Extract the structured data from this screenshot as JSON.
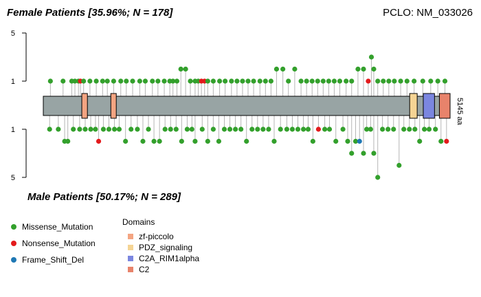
{
  "header": {
    "female_title": "Female Patients [35.96%; N = 178]",
    "male_title": "Male Patients [50.17%; N = 289]",
    "gene_title": "PCLO: NM_033026"
  },
  "legend": {
    "mutations": [
      {
        "label": "Missense_Mutation",
        "color": "#33A02C"
      },
      {
        "label": "Nonsense_Mutation",
        "color": "#E31A1C"
      },
      {
        "label": "Frame_Shift_Del",
        "color": "#1F78B4"
      }
    ],
    "domains_title": "Domains",
    "domains": [
      {
        "label": "zf-piccolo",
        "color": "#F4A582"
      },
      {
        "label": "PDZ_signaling",
        "color": "#F5D494"
      },
      {
        "label": "C2A_RIM1alpha",
        "color": "#7B86E0"
      },
      {
        "label": "C2",
        "color": "#E8836B"
      }
    ]
  },
  "chart_data": {
    "type": "lollipop",
    "protein_length": 5145,
    "protein_length_label": "5145 aa",
    "y_ticks": [
      "5",
      "1",
      "1",
      "5"
    ],
    "domains": [
      {
        "name": "zf-piccolo",
        "start": 487,
        "end": 558
      },
      {
        "name": "zf-piccolo",
        "start": 854,
        "end": 923
      },
      {
        "name": "PDZ_signaling",
        "start": 4634,
        "end": 4729
      },
      {
        "name": "C2A_RIM1alpha",
        "start": 4806,
        "end": 4948
      },
      {
        "name": "C2",
        "start": 5010,
        "end": 5145
      }
    ],
    "colors": {
      "Missense": "#33A02C",
      "Nonsense": "#E31A1C",
      "Frame_Shift_Del": "#1F78B4"
    },
    "female": [
      {
        "pos": 90,
        "count": 1,
        "type": "Missense"
      },
      {
        "pos": 250,
        "count": 1,
        "type": "Missense"
      },
      {
        "pos": 360,
        "count": 1,
        "type": "Missense"
      },
      {
        "pos": 400,
        "count": 1,
        "type": "Missense"
      },
      {
        "pos": 445,
        "count": 1,
        "type": "Missense"
      },
      {
        "pos": 470,
        "count": 1,
        "type": "Nonsense"
      },
      {
        "pos": 510,
        "count": 1,
        "type": "Missense"
      },
      {
        "pos": 590,
        "count": 1,
        "type": "Missense"
      },
      {
        "pos": 670,
        "count": 1,
        "type": "Missense"
      },
      {
        "pos": 750,
        "count": 1,
        "type": "Missense"
      },
      {
        "pos": 810,
        "count": 1,
        "type": "Missense"
      },
      {
        "pos": 890,
        "count": 1,
        "type": "Missense"
      },
      {
        "pos": 980,
        "count": 1,
        "type": "Missense"
      },
      {
        "pos": 1050,
        "count": 1,
        "type": "Missense"
      },
      {
        "pos": 1130,
        "count": 1,
        "type": "Missense"
      },
      {
        "pos": 1220,
        "count": 1,
        "type": "Missense"
      },
      {
        "pos": 1290,
        "count": 1,
        "type": "Missense"
      },
      {
        "pos": 1380,
        "count": 1,
        "type": "Missense"
      },
      {
        "pos": 1450,
        "count": 1,
        "type": "Missense"
      },
      {
        "pos": 1530,
        "count": 1,
        "type": "Missense"
      },
      {
        "pos": 1600,
        "count": 1,
        "type": "Missense"
      },
      {
        "pos": 1640,
        "count": 1,
        "type": "Missense"
      },
      {
        "pos": 1690,
        "count": 1,
        "type": "Missense"
      },
      {
        "pos": 1740,
        "count": 2,
        "type": "Missense"
      },
      {
        "pos": 1800,
        "count": 2,
        "type": "Missense"
      },
      {
        "pos": 1860,
        "count": 1,
        "type": "Missense"
      },
      {
        "pos": 1920,
        "count": 1,
        "type": "Missense"
      },
      {
        "pos": 1960,
        "count": 1,
        "type": "Missense"
      },
      {
        "pos": 2000,
        "count": 1,
        "type": "Nonsense"
      },
      {
        "pos": 2040,
        "count": 1,
        "type": "Nonsense"
      },
      {
        "pos": 2080,
        "count": 1,
        "type": "Missense"
      },
      {
        "pos": 2150,
        "count": 1,
        "type": "Missense"
      },
      {
        "pos": 2230,
        "count": 1,
        "type": "Missense"
      },
      {
        "pos": 2300,
        "count": 1,
        "type": "Missense"
      },
      {
        "pos": 2380,
        "count": 1,
        "type": "Missense"
      },
      {
        "pos": 2450,
        "count": 1,
        "type": "Missense"
      },
      {
        "pos": 2520,
        "count": 1,
        "type": "Missense"
      },
      {
        "pos": 2590,
        "count": 1,
        "type": "Missense"
      },
      {
        "pos": 2660,
        "count": 1,
        "type": "Missense"
      },
      {
        "pos": 2740,
        "count": 1,
        "type": "Missense"
      },
      {
        "pos": 2810,
        "count": 1,
        "type": "Missense"
      },
      {
        "pos": 2880,
        "count": 1,
        "type": "Missense"
      },
      {
        "pos": 2950,
        "count": 2,
        "type": "Missense"
      },
      {
        "pos": 3030,
        "count": 2,
        "type": "Missense"
      },
      {
        "pos": 3100,
        "count": 1,
        "type": "Missense"
      },
      {
        "pos": 3180,
        "count": 2,
        "type": "Missense"
      },
      {
        "pos": 3260,
        "count": 1,
        "type": "Missense"
      },
      {
        "pos": 3330,
        "count": 1,
        "type": "Missense"
      },
      {
        "pos": 3400,
        "count": 1,
        "type": "Missense"
      },
      {
        "pos": 3470,
        "count": 1,
        "type": "Missense"
      },
      {
        "pos": 3540,
        "count": 1,
        "type": "Missense"
      },
      {
        "pos": 3610,
        "count": 1,
        "type": "Missense"
      },
      {
        "pos": 3680,
        "count": 1,
        "type": "Missense"
      },
      {
        "pos": 3750,
        "count": 1,
        "type": "Missense"
      },
      {
        "pos": 3830,
        "count": 1,
        "type": "Missense"
      },
      {
        "pos": 3900,
        "count": 1,
        "type": "Missense"
      },
      {
        "pos": 3980,
        "count": 2,
        "type": "Missense"
      },
      {
        "pos": 4050,
        "count": 2,
        "type": "Missense"
      },
      {
        "pos": 4110,
        "count": 1,
        "type": "Nonsense"
      },
      {
        "pos": 4150,
        "count": 3,
        "type": "Missense"
      },
      {
        "pos": 4180,
        "count": 2,
        "type": "Missense"
      },
      {
        "pos": 4230,
        "count": 1,
        "type": "Missense"
      },
      {
        "pos": 4300,
        "count": 1,
        "type": "Missense"
      },
      {
        "pos": 4370,
        "count": 1,
        "type": "Missense"
      },
      {
        "pos": 4440,
        "count": 1,
        "type": "Missense"
      },
      {
        "pos": 4520,
        "count": 1,
        "type": "Missense"
      },
      {
        "pos": 4600,
        "count": 1,
        "type": "Missense"
      },
      {
        "pos": 4690,
        "count": 1,
        "type": "Missense"
      },
      {
        "pos": 4800,
        "count": 1,
        "type": "Missense"
      },
      {
        "pos": 4900,
        "count": 1,
        "type": "Missense"
      },
      {
        "pos": 4990,
        "count": 1,
        "type": "Missense"
      },
      {
        "pos": 5080,
        "count": 1,
        "type": "Missense"
      }
    ],
    "male": [
      {
        "pos": 80,
        "count": 1,
        "type": "Missense"
      },
      {
        "pos": 190,
        "count": 1,
        "type": "Missense"
      },
      {
        "pos": 270,
        "count": 2,
        "type": "Missense"
      },
      {
        "pos": 310,
        "count": 2,
        "type": "Missense"
      },
      {
        "pos": 380,
        "count": 1,
        "type": "Missense"
      },
      {
        "pos": 460,
        "count": 1,
        "type": "Missense"
      },
      {
        "pos": 530,
        "count": 1,
        "type": "Missense"
      },
      {
        "pos": 600,
        "count": 1,
        "type": "Missense"
      },
      {
        "pos": 660,
        "count": 1,
        "type": "Missense"
      },
      {
        "pos": 700,
        "count": 2,
        "type": "Nonsense"
      },
      {
        "pos": 760,
        "count": 1,
        "type": "Missense"
      },
      {
        "pos": 830,
        "count": 1,
        "type": "Missense"
      },
      {
        "pos": 900,
        "count": 1,
        "type": "Missense"
      },
      {
        "pos": 960,
        "count": 1,
        "type": "Missense"
      },
      {
        "pos": 1040,
        "count": 2,
        "type": "Missense"
      },
      {
        "pos": 1110,
        "count": 1,
        "type": "Missense"
      },
      {
        "pos": 1190,
        "count": 1,
        "type": "Missense"
      },
      {
        "pos": 1260,
        "count": 2,
        "type": "Missense"
      },
      {
        "pos": 1330,
        "count": 1,
        "type": "Missense"
      },
      {
        "pos": 1400,
        "count": 2,
        "type": "Missense"
      },
      {
        "pos": 1470,
        "count": 2,
        "type": "Missense"
      },
      {
        "pos": 1540,
        "count": 1,
        "type": "Missense"
      },
      {
        "pos": 1610,
        "count": 1,
        "type": "Missense"
      },
      {
        "pos": 1680,
        "count": 1,
        "type": "Missense"
      },
      {
        "pos": 1750,
        "count": 2,
        "type": "Missense"
      },
      {
        "pos": 1820,
        "count": 1,
        "type": "Missense"
      },
      {
        "pos": 1880,
        "count": 1,
        "type": "Missense"
      },
      {
        "pos": 1920,
        "count": 2,
        "type": "Missense"
      },
      {
        "pos": 2010,
        "count": 1,
        "type": "Missense"
      },
      {
        "pos": 2080,
        "count": 2,
        "type": "Missense"
      },
      {
        "pos": 2150,
        "count": 1,
        "type": "Missense"
      },
      {
        "pos": 2220,
        "count": 2,
        "type": "Missense"
      },
      {
        "pos": 2290,
        "count": 1,
        "type": "Missense"
      },
      {
        "pos": 2360,
        "count": 1,
        "type": "Missense"
      },
      {
        "pos": 2430,
        "count": 1,
        "type": "Missense"
      },
      {
        "pos": 2500,
        "count": 1,
        "type": "Missense"
      },
      {
        "pos": 2570,
        "count": 2,
        "type": "Missense"
      },
      {
        "pos": 2640,
        "count": 1,
        "type": "Missense"
      },
      {
        "pos": 2710,
        "count": 1,
        "type": "Missense"
      },
      {
        "pos": 2780,
        "count": 1,
        "type": "Missense"
      },
      {
        "pos": 2850,
        "count": 1,
        "type": "Missense"
      },
      {
        "pos": 2920,
        "count": 2,
        "type": "Missense"
      },
      {
        "pos": 3000,
        "count": 1,
        "type": "Missense"
      },
      {
        "pos": 3080,
        "count": 1,
        "type": "Missense"
      },
      {
        "pos": 3150,
        "count": 1,
        "type": "Missense"
      },
      {
        "pos": 3220,
        "count": 1,
        "type": "Missense"
      },
      {
        "pos": 3290,
        "count": 1,
        "type": "Missense"
      },
      {
        "pos": 3350,
        "count": 1,
        "type": "Missense"
      },
      {
        "pos": 3410,
        "count": 2,
        "type": "Missense"
      },
      {
        "pos": 3480,
        "count": 1,
        "type": "Nonsense"
      },
      {
        "pos": 3560,
        "count": 1,
        "type": "Missense"
      },
      {
        "pos": 3620,
        "count": 1,
        "type": "Missense"
      },
      {
        "pos": 3700,
        "count": 2,
        "type": "Missense"
      },
      {
        "pos": 3790,
        "count": 1,
        "type": "Missense"
      },
      {
        "pos": 3850,
        "count": 2,
        "type": "Missense"
      },
      {
        "pos": 3900,
        "count": 3,
        "type": "Missense"
      },
      {
        "pos": 3950,
        "count": 2,
        "type": "Missense"
      },
      {
        "pos": 4000,
        "count": 2,
        "type": "Frame_Shift_Del"
      },
      {
        "pos": 4050,
        "count": 3,
        "type": "Missense"
      },
      {
        "pos": 4090,
        "count": 1,
        "type": "Missense"
      },
      {
        "pos": 4140,
        "count": 1,
        "type": "Missense"
      },
      {
        "pos": 4180,
        "count": 3,
        "type": "Missense"
      },
      {
        "pos": 4230,
        "count": 5,
        "type": "Missense"
      },
      {
        "pos": 4290,
        "count": 1,
        "type": "Missense"
      },
      {
        "pos": 4360,
        "count": 1,
        "type": "Missense"
      },
      {
        "pos": 4430,
        "count": 1,
        "type": "Missense"
      },
      {
        "pos": 4500,
        "count": 4,
        "type": "Missense"
      },
      {
        "pos": 4560,
        "count": 1,
        "type": "Missense"
      },
      {
        "pos": 4630,
        "count": 1,
        "type": "Missense"
      },
      {
        "pos": 4700,
        "count": 1,
        "type": "Missense"
      },
      {
        "pos": 4760,
        "count": 2,
        "type": "Missense"
      },
      {
        "pos": 4820,
        "count": 1,
        "type": "Missense"
      },
      {
        "pos": 4880,
        "count": 1,
        "type": "Missense"
      },
      {
        "pos": 4960,
        "count": 1,
        "type": "Missense"
      },
      {
        "pos": 5030,
        "count": 2,
        "type": "Missense"
      },
      {
        "pos": 5100,
        "count": 2,
        "type": "Nonsense"
      }
    ]
  }
}
